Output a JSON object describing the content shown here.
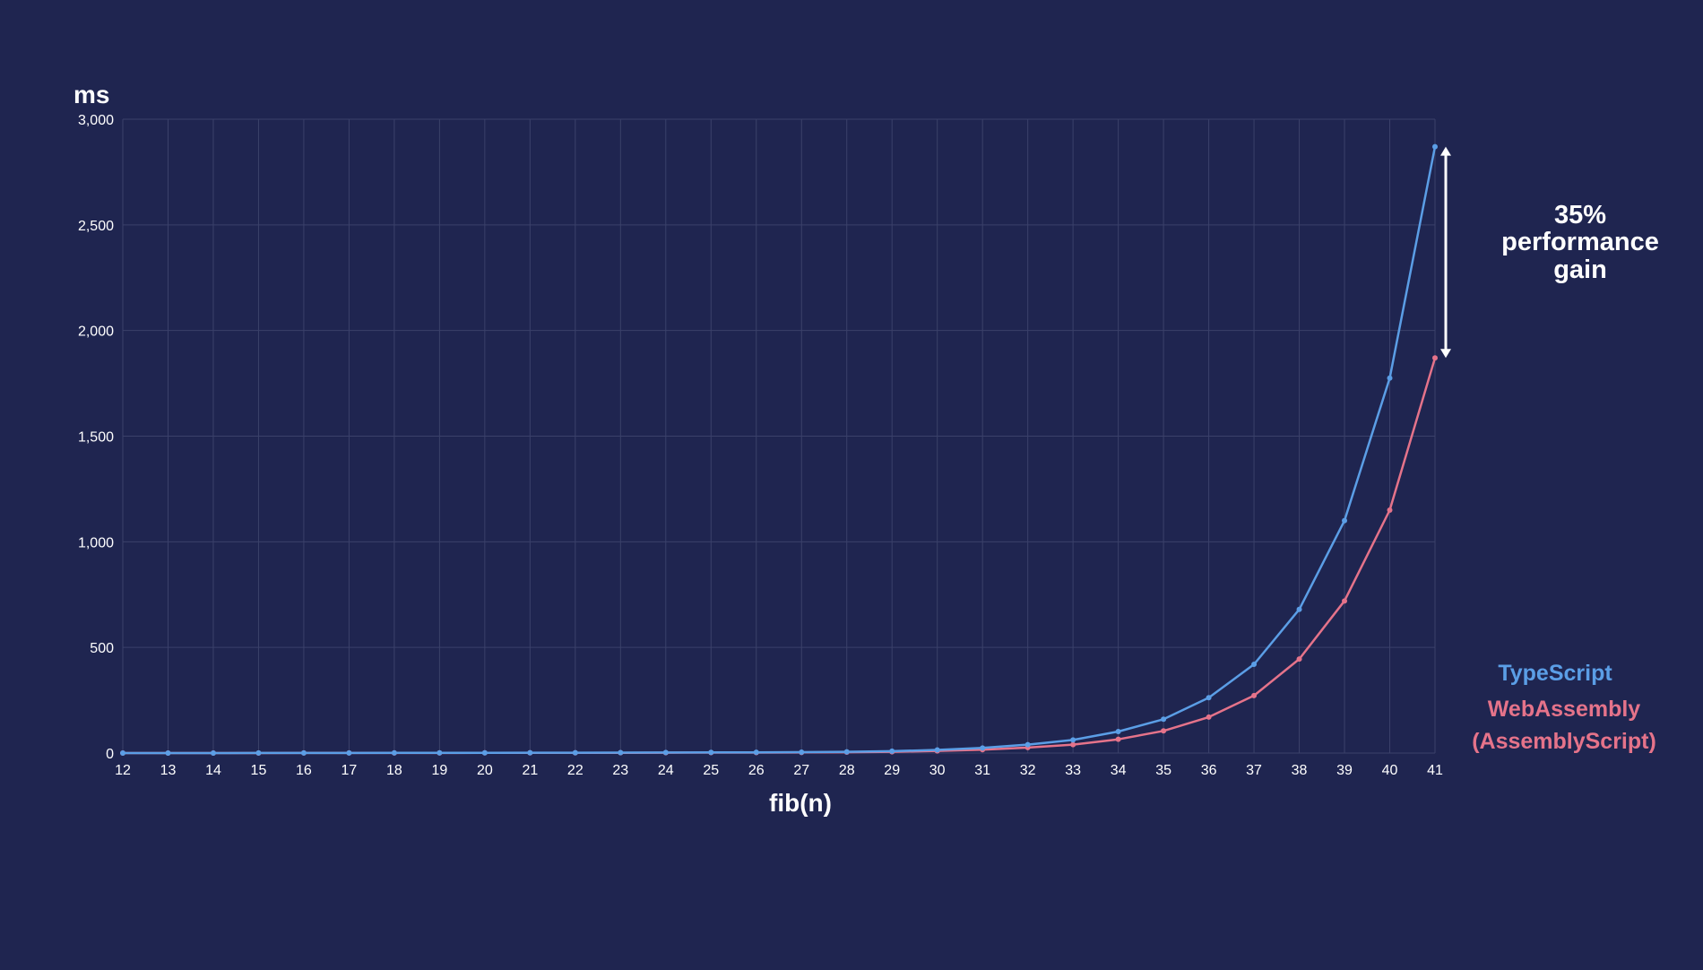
{
  "chart_data": {
    "type": "line",
    "ylabel": "ms",
    "xlabel": "fib(n)",
    "x": [
      12,
      13,
      14,
      15,
      16,
      17,
      18,
      19,
      20,
      21,
      22,
      23,
      24,
      25,
      26,
      27,
      28,
      29,
      30,
      31,
      32,
      33,
      34,
      35,
      36,
      37,
      38,
      39,
      40,
      41
    ],
    "ylim": [
      0,
      3000
    ],
    "yticks": [
      0,
      500,
      1000,
      1500,
      2000,
      2500,
      3000
    ],
    "ytick_labels": [
      "0",
      "500",
      "1,000",
      "1,500",
      "2,000",
      "2,500",
      "3,000"
    ],
    "grid": true,
    "legend_position": "right",
    "series": [
      {
        "name": "TypeScript",
        "color": "#5b9ee6",
        "values": [
          0.1,
          0.1,
          0.2,
          0.3,
          0.4,
          0.6,
          0.8,
          1,
          1.2,
          1.5,
          1.8,
          2.2,
          2.6,
          3,
          3.5,
          4.3,
          6,
          9,
          15,
          24,
          40,
          62,
          102,
          160,
          262,
          420,
          680,
          1100,
          1775,
          2870
        ]
      },
      {
        "name": "WebAssembly\n(AssemblyScript)",
        "legend_lines": [
          "WebAssembly",
          "(AssemblyScript)"
        ],
        "color": "#e5738a",
        "values": [
          0.1,
          0.1,
          0.1,
          0.2,
          0.3,
          0.4,
          0.5,
          0.6,
          0.8,
          1,
          1.2,
          1.4,
          1.7,
          2,
          2.3,
          2.8,
          4,
          6,
          10,
          16,
          26,
          40,
          65,
          105,
          170,
          272,
          445,
          720,
          1150,
          1870
        ]
      }
    ],
    "annotation": {
      "lines": [
        "35%",
        "performance",
        "gain"
      ],
      "color": "#ffffff"
    }
  }
}
